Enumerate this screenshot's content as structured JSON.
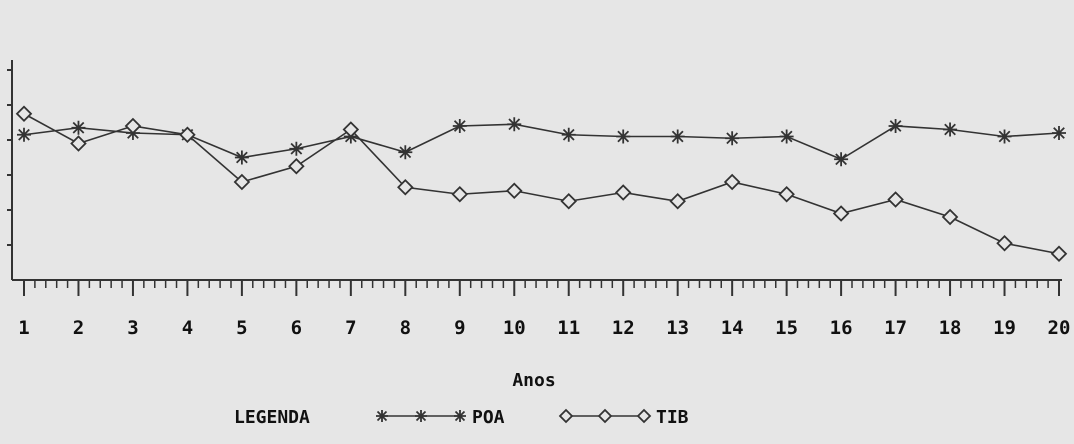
{
  "chart_data": {
    "type": "line",
    "categories": [
      "1",
      "2",
      "3",
      "4",
      "5",
      "6",
      "7",
      "8",
      "9",
      "10",
      "11",
      "12",
      "13",
      "14",
      "15",
      "16",
      "17",
      "18",
      "19",
      "20"
    ],
    "xlabel": "Anos",
    "ylabel": "",
    "title": "",
    "ylim": [
      0,
      7
    ],
    "grid": false,
    "legend_position": "bottom",
    "legend_title": "LEGENDA",
    "series": [
      {
        "name": "POA",
        "marker": "asterisk",
        "values": [
          4.15,
          4.35,
          4.2,
          4.15,
          3.5,
          3.75,
          4.1,
          3.65,
          4.4,
          4.45,
          4.15,
          4.1,
          4.1,
          4.05,
          4.1,
          3.45,
          4.4,
          4.3,
          4.1,
          4.2
        ]
      },
      {
        "name": "TIB",
        "marker": "diamond",
        "values": [
          4.75,
          3.9,
          4.4,
          4.15,
          2.8,
          3.25,
          4.3,
          2.65,
          2.45,
          2.55,
          2.25,
          2.5,
          2.25,
          2.8,
          2.45,
          1.9,
          2.3,
          1.8,
          1.05,
          0.75
        ]
      }
    ],
    "colors": {
      "line": "#333333",
      "text": "#111111",
      "background": "#e6e6e6"
    }
  }
}
